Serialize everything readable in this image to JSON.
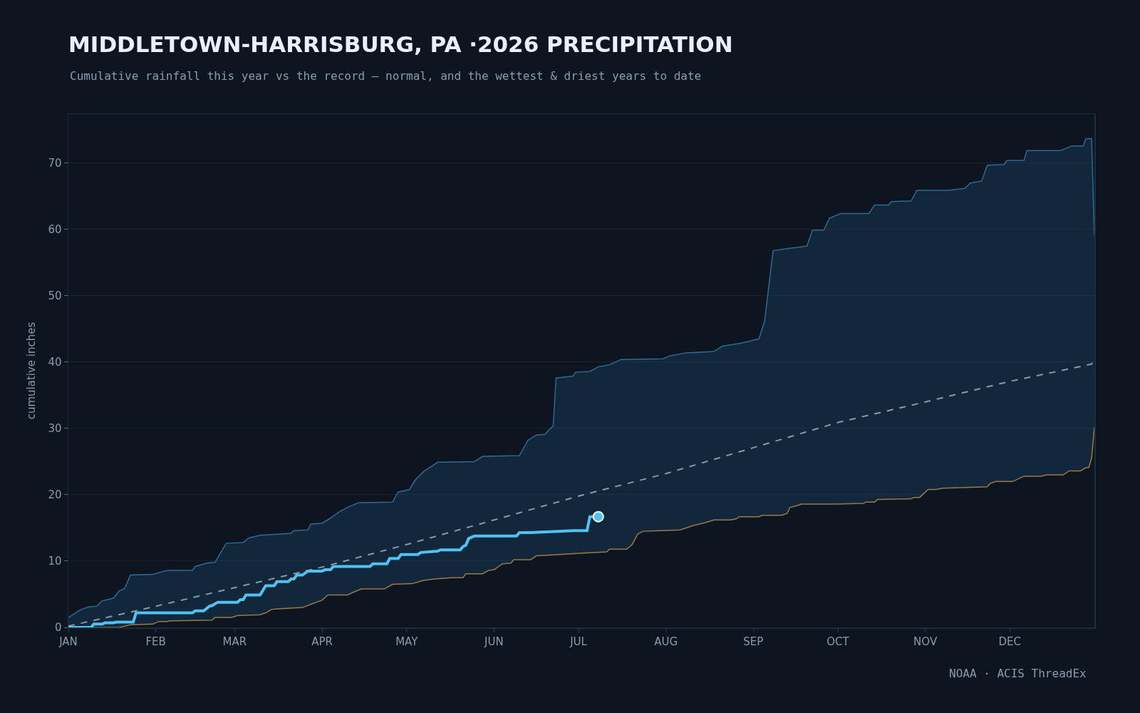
{
  "chart_data": {
    "type": "line",
    "title": "MIDDLETOWN-HARRISBURG, PA ·2026 PRECIPITATION",
    "subtitle": "Cumulative rainfall this year vs the record — normal, and the wettest & driest years to date",
    "ylabel": "cumulative inches",
    "annotations": [
      "NOAA · ACIS ThreadEx"
    ],
    "xlim": [
      "2026-01-01",
      "2026-12-31"
    ],
    "xticks": [
      {
        "value": "2026-01-01",
        "label": "JAN"
      },
      {
        "value": "2026-02-01",
        "label": "FEB"
      },
      {
        "value": "2026-03-01",
        "label": "MAR"
      },
      {
        "value": "2026-04-01",
        "label": "APR"
      },
      {
        "value": "2026-05-01",
        "label": "MAY"
      },
      {
        "value": "2026-06-01",
        "label": "JUN"
      },
      {
        "value": "2026-07-01",
        "label": "JUL"
      },
      {
        "value": "2026-08-01",
        "label": "AUG"
      },
      {
        "value": "2026-09-01",
        "label": "SEP"
      },
      {
        "value": "2026-10-01",
        "label": "OCT"
      },
      {
        "value": "2026-11-01",
        "label": "NOV"
      },
      {
        "value": "2026-12-01",
        "label": "DEC"
      }
    ],
    "ylim": [
      0,
      77.4
    ],
    "yticks": [
      0,
      10,
      20,
      30,
      40,
      50,
      60,
      70
    ],
    "grid": "y",
    "legend": false,
    "series": [
      {
        "color": "#9c7a45",
        "x": [
          "2026-01-01",
          "2026-01-19",
          "2026-01-23",
          "2026-01-31",
          "2026-02-02",
          "2026-02-05",
          "2026-02-06",
          "2026-02-21",
          "2026-02-22",
          "2026-02-28",
          "2026-03-02",
          "2026-03-10",
          "2026-03-12",
          "2026-03-14",
          "2026-03-16",
          "2026-03-25",
          "2026-03-28",
          "2026-03-30",
          "2026-04-01",
          "2026-04-03",
          "2026-04-10",
          "2026-04-12",
          "2026-04-15",
          "2026-04-23",
          "2026-04-26",
          "2026-05-03",
          "2026-05-07",
          "2026-05-11",
          "2026-05-17",
          "2026-05-21",
          "2026-05-22",
          "2026-05-28",
          "2026-05-30",
          "2026-06-01",
          "2026-06-04",
          "2026-06-07",
          "2026-06-08",
          "2026-06-14",
          "2026-06-16",
          "2026-06-24",
          "2026-07-06",
          "2026-07-11",
          "2026-07-12",
          "2026-07-18",
          "2026-07-20",
          "2026-07-22",
          "2026-07-24",
          "2026-07-30",
          "2026-08-06",
          "2026-08-11",
          "2026-08-15",
          "2026-08-18",
          "2026-08-24",
          "2026-08-26",
          "2026-08-27",
          "2026-09-03",
          "2026-09-04",
          "2026-09-11",
          "2026-09-13",
          "2026-09-14",
          "2026-09-16",
          "2026-09-18",
          "2026-09-30",
          "2026-10-10",
          "2026-10-11",
          "2026-10-14",
          "2026-10-15",
          "2026-10-27",
          "2026-10-28",
          "2026-10-30",
          "2026-11-02",
          "2026-11-05",
          "2026-11-07",
          "2026-11-23",
          "2026-11-24",
          "2026-11-26",
          "2026-12-02",
          "2026-12-06",
          "2026-12-12",
          "2026-12-14",
          "2026-12-20",
          "2026-12-22",
          "2026-12-26",
          "2026-12-28",
          "2026-12-29",
          "2026-12-30",
          "2026-12-31"
        ],
        "values": [
          0.0,
          0.0,
          0.4,
          0.5,
          0.9,
          0.9,
          1.0,
          1.1,
          1.5,
          1.5,
          1.8,
          1.9,
          2.2,
          2.7,
          2.8,
          3.0,
          3.5,
          3.8,
          4.1,
          4.9,
          4.9,
          5.3,
          5.8,
          5.8,
          6.5,
          6.6,
          7.1,
          7.3,
          7.5,
          7.5,
          8.1,
          8.1,
          8.6,
          8.7,
          9.6,
          9.7,
          10.2,
          10.2,
          10.8,
          11.0,
          11.3,
          11.4,
          11.8,
          11.8,
          12.5,
          14.1,
          14.5,
          14.6,
          14.7,
          15.4,
          15.8,
          16.2,
          16.2,
          16.4,
          16.7,
          16.7,
          16.9,
          16.9,
          17.2,
          18.1,
          18.3,
          18.6,
          18.6,
          18.7,
          18.9,
          18.9,
          19.3,
          19.4,
          19.6,
          19.6,
          20.8,
          20.8,
          21.0,
          21.2,
          21.7,
          22.0,
          22.0,
          22.8,
          22.8,
          23.0,
          23.0,
          23.6,
          23.6,
          24.1,
          24.1,
          25.5,
          30.2
        ]
      },
      {
        "type": "area",
        "color": "#2e6a96",
        "x": [
          "2026-01-01",
          "2026-01-05",
          "2026-01-08",
          "2026-01-11",
          "2026-01-13",
          "2026-01-17",
          "2026-01-19",
          "2026-01-21",
          "2026-01-23",
          "2026-01-31",
          "2026-02-05",
          "2026-02-14",
          "2026-02-15",
          "2026-02-19",
          "2026-02-22",
          "2026-02-26",
          "2026-03-04",
          "2026-03-06",
          "2026-03-10",
          "2026-03-21",
          "2026-03-22",
          "2026-03-27",
          "2026-03-28",
          "2026-04-01",
          "2026-04-04",
          "2026-04-07",
          "2026-04-10",
          "2026-04-14",
          "2026-04-26",
          "2026-04-28",
          "2026-05-02",
          "2026-05-04",
          "2026-05-07",
          "2026-05-12",
          "2026-05-25",
          "2026-05-28",
          "2026-06-10",
          "2026-06-13",
          "2026-06-16",
          "2026-06-19",
          "2026-06-22",
          "2026-06-23",
          "2026-06-29",
          "2026-06-30",
          "2026-07-05",
          "2026-07-08",
          "2026-07-12",
          "2026-07-16",
          "2026-07-31",
          "2026-08-02",
          "2026-08-08",
          "2026-08-18",
          "2026-08-21",
          "2026-08-28",
          "2026-09-03",
          "2026-09-05",
          "2026-09-08",
          "2026-09-13",
          "2026-09-20",
          "2026-09-22",
          "2026-09-26",
          "2026-09-28",
          "2026-10-02",
          "2026-10-12",
          "2026-10-14",
          "2026-10-19",
          "2026-10-20",
          "2026-10-27",
          "2026-10-29",
          "2026-11-09",
          "2026-11-15",
          "2026-11-17",
          "2026-11-21",
          "2026-11-23",
          "2026-11-29",
          "2026-11-30",
          "2026-12-06",
          "2026-12-07",
          "2026-12-19",
          "2026-12-23",
          "2026-12-27",
          "2026-12-28",
          "2026-12-30",
          "2026-12-31"
        ],
        "values": [
          1.5,
          2.6,
          3.1,
          3.2,
          4.0,
          4.4,
          5.5,
          5.9,
          7.9,
          8.0,
          8.6,
          8.6,
          9.2,
          9.7,
          9.8,
          12.7,
          12.8,
          13.5,
          13.9,
          14.2,
          14.6,
          14.7,
          15.6,
          15.7,
          16.5,
          17.4,
          18.1,
          18.8,
          18.9,
          20.4,
          20.8,
          22.2,
          23.5,
          24.9,
          25.0,
          25.8,
          25.9,
          28.2,
          29.0,
          29.1,
          30.4,
          37.6,
          37.9,
          38.5,
          38.6,
          39.3,
          39.6,
          40.4,
          40.5,
          40.9,
          41.4,
          41.6,
          42.4,
          42.9,
          43.5,
          46.2,
          56.8,
          57.1,
          57.5,
          59.9,
          59.9,
          61.7,
          62.4,
          62.4,
          63.7,
          63.7,
          64.2,
          64.3,
          65.9,
          65.9,
          66.2,
          67.0,
          67.3,
          69.7,
          69.8,
          70.4,
          70.4,
          71.9,
          71.9,
          72.6,
          72.6,
          73.7,
          73.7,
          59.1
        ]
      },
      {
        "line_style": "dashed",
        "color": "#8a99a8",
        "x": [
          "2026-01-01",
          "2026-02-01",
          "2026-03-01",
          "2026-04-01",
          "2026-05-01",
          "2026-06-01",
          "2026-07-01",
          "2026-08-01",
          "2026-09-01",
          "2026-10-01",
          "2026-11-01",
          "2026-12-01",
          "2026-12-30",
          "2026-12-31"
        ],
        "values": [
          0.2,
          3.2,
          6.0,
          9.1,
          12.5,
          16.2,
          19.8,
          23.2,
          27.1,
          30.9,
          34.0,
          37.1,
          39.7,
          40.7
        ]
      },
      {
        "color": "#4fc3f7",
        "x": [
          "2026-01-01",
          "2026-01-09",
          "2026-01-10",
          "2026-01-13",
          "2026-01-14",
          "2026-01-17",
          "2026-01-18",
          "2026-01-24",
          "2026-01-25",
          "2026-02-14",
          "2026-02-15",
          "2026-02-18",
          "2026-02-20",
          "2026-02-21",
          "2026-02-23",
          "2026-03-02",
          "2026-03-03",
          "2026-03-04",
          "2026-03-05",
          "2026-03-10",
          "2026-03-12",
          "2026-03-15",
          "2026-03-16",
          "2026-03-20",
          "2026-03-21",
          "2026-03-22",
          "2026-03-23",
          "2026-03-25",
          "2026-03-27",
          "2026-04-01",
          "2026-04-02",
          "2026-04-04",
          "2026-04-05",
          "2026-04-18",
          "2026-04-19",
          "2026-04-24",
          "2026-04-25",
          "2026-04-28",
          "2026-04-29",
          "2026-05-05",
          "2026-05-06",
          "2026-05-12",
          "2026-05-13",
          "2026-05-20",
          "2026-05-21",
          "2026-05-22",
          "2026-05-23",
          "2026-05-25",
          "2026-06-09",
          "2026-06-10",
          "2026-06-14",
          "2026-06-29",
          "2026-07-04",
          "2026-07-05",
          "2026-07-08"
        ],
        "values": [
          0.0,
          0.0,
          0.5,
          0.5,
          0.7,
          0.7,
          0.8,
          0.8,
          2.2,
          2.2,
          2.5,
          2.5,
          3.2,
          3.3,
          3.8,
          3.8,
          4.2,
          4.2,
          4.9,
          4.9,
          6.3,
          6.3,
          6.9,
          6.9,
          7.3,
          7.3,
          7.9,
          7.9,
          8.5,
          8.5,
          8.7,
          8.7,
          9.2,
          9.2,
          9.6,
          9.6,
          10.4,
          10.4,
          11.0,
          11.0,
          11.3,
          11.5,
          11.7,
          11.7,
          12.2,
          12.4,
          13.4,
          13.8,
          13.8,
          14.3,
          14.3,
          14.6,
          14.6,
          16.7,
          16.7
        ]
      },
      {
        "type": "scatter",
        "marker": "circle",
        "color": "#4fc3f7",
        "x": [
          "2026-07-08"
        ],
        "values": [
          16.7
        ]
      }
    ]
  }
}
